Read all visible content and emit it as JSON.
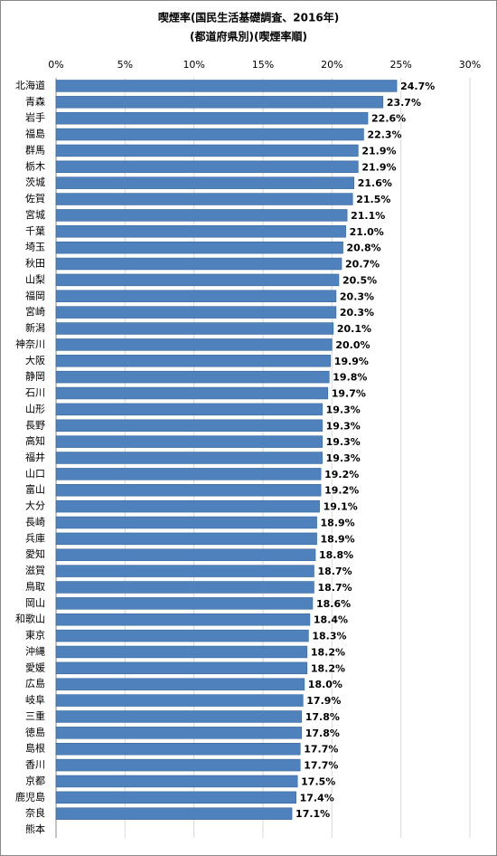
{
  "chart_data": {
    "type": "bar",
    "orientation": "horizontal",
    "title": [
      "喫煙率(国民生活基礎調査、2016年)",
      "(都道府県別)(喫煙率順)"
    ],
    "categories": [
      "北海道",
      "青森",
      "岩手",
      "福島",
      "群馬",
      "栃木",
      "茨城",
      "佐賀",
      "宮城",
      "千葉",
      "埼玉",
      "秋田",
      "山梨",
      "福岡",
      "宮崎",
      "新潟",
      "神奈川",
      "大阪",
      "静岡",
      "石川",
      "山形",
      "長野",
      "高知",
      "福井",
      "山口",
      "富山",
      "大分",
      "長崎",
      "兵庫",
      "愛知",
      "滋賀",
      "鳥取",
      "岡山",
      "和歌山",
      "東京",
      "沖縄",
      "愛媛",
      "広島",
      "岐阜",
      "三重",
      "徳島",
      "島根",
      "香川",
      "京都",
      "鹿児島",
      "奈良",
      "熊本"
    ],
    "values": [
      24.7,
      23.7,
      22.6,
      22.3,
      21.9,
      21.9,
      21.6,
      21.5,
      21.1,
      21.0,
      20.8,
      20.7,
      20.5,
      20.3,
      20.3,
      20.1,
      20.0,
      19.9,
      19.8,
      19.7,
      19.3,
      19.3,
      19.3,
      19.3,
      19.2,
      19.2,
      19.1,
      18.9,
      18.9,
      18.8,
      18.7,
      18.7,
      18.6,
      18.4,
      18.3,
      18.2,
      18.2,
      18.0,
      17.9,
      17.8,
      17.8,
      17.7,
      17.7,
      17.5,
      17.4,
      17.1,
      null
    ],
    "value_labels": [
      "24.7%",
      "23.7%",
      "22.6%",
      "22.3%",
      "21.9%",
      "21.9%",
      "21.6%",
      "21.5%",
      "21.1%",
      "21.0%",
      "20.8%",
      "20.7%",
      "20.5%",
      "20.3%",
      "20.3%",
      "20.1%",
      "20.0%",
      "19.9%",
      "19.8%",
      "19.7%",
      "19.3%",
      "19.3%",
      "19.3%",
      "19.3%",
      "19.2%",
      "19.2%",
      "19.1%",
      "18.9%",
      "18.9%",
      "18.8%",
      "18.7%",
      "18.7%",
      "18.6%",
      "18.4%",
      "18.3%",
      "18.2%",
      "18.2%",
      "18.0%",
      "17.9%",
      "17.8%",
      "17.8%",
      "17.7%",
      "17.7%",
      "17.5%",
      "17.4%",
      "17.1%",
      null
    ],
    "color": "#4f81bd",
    "xlim": [
      0,
      30
    ],
    "xticks": [
      {
        "value": 0,
        "label": "0%"
      },
      {
        "value": 5,
        "label": "5%"
      },
      {
        "value": 10,
        "label": "10%"
      },
      {
        "value": 15,
        "label": "15%"
      },
      {
        "value": 20,
        "label": "20%"
      },
      {
        "value": 25,
        "label": "25%"
      },
      {
        "value": 30,
        "label": "30%"
      }
    ],
    "grid": true
  }
}
